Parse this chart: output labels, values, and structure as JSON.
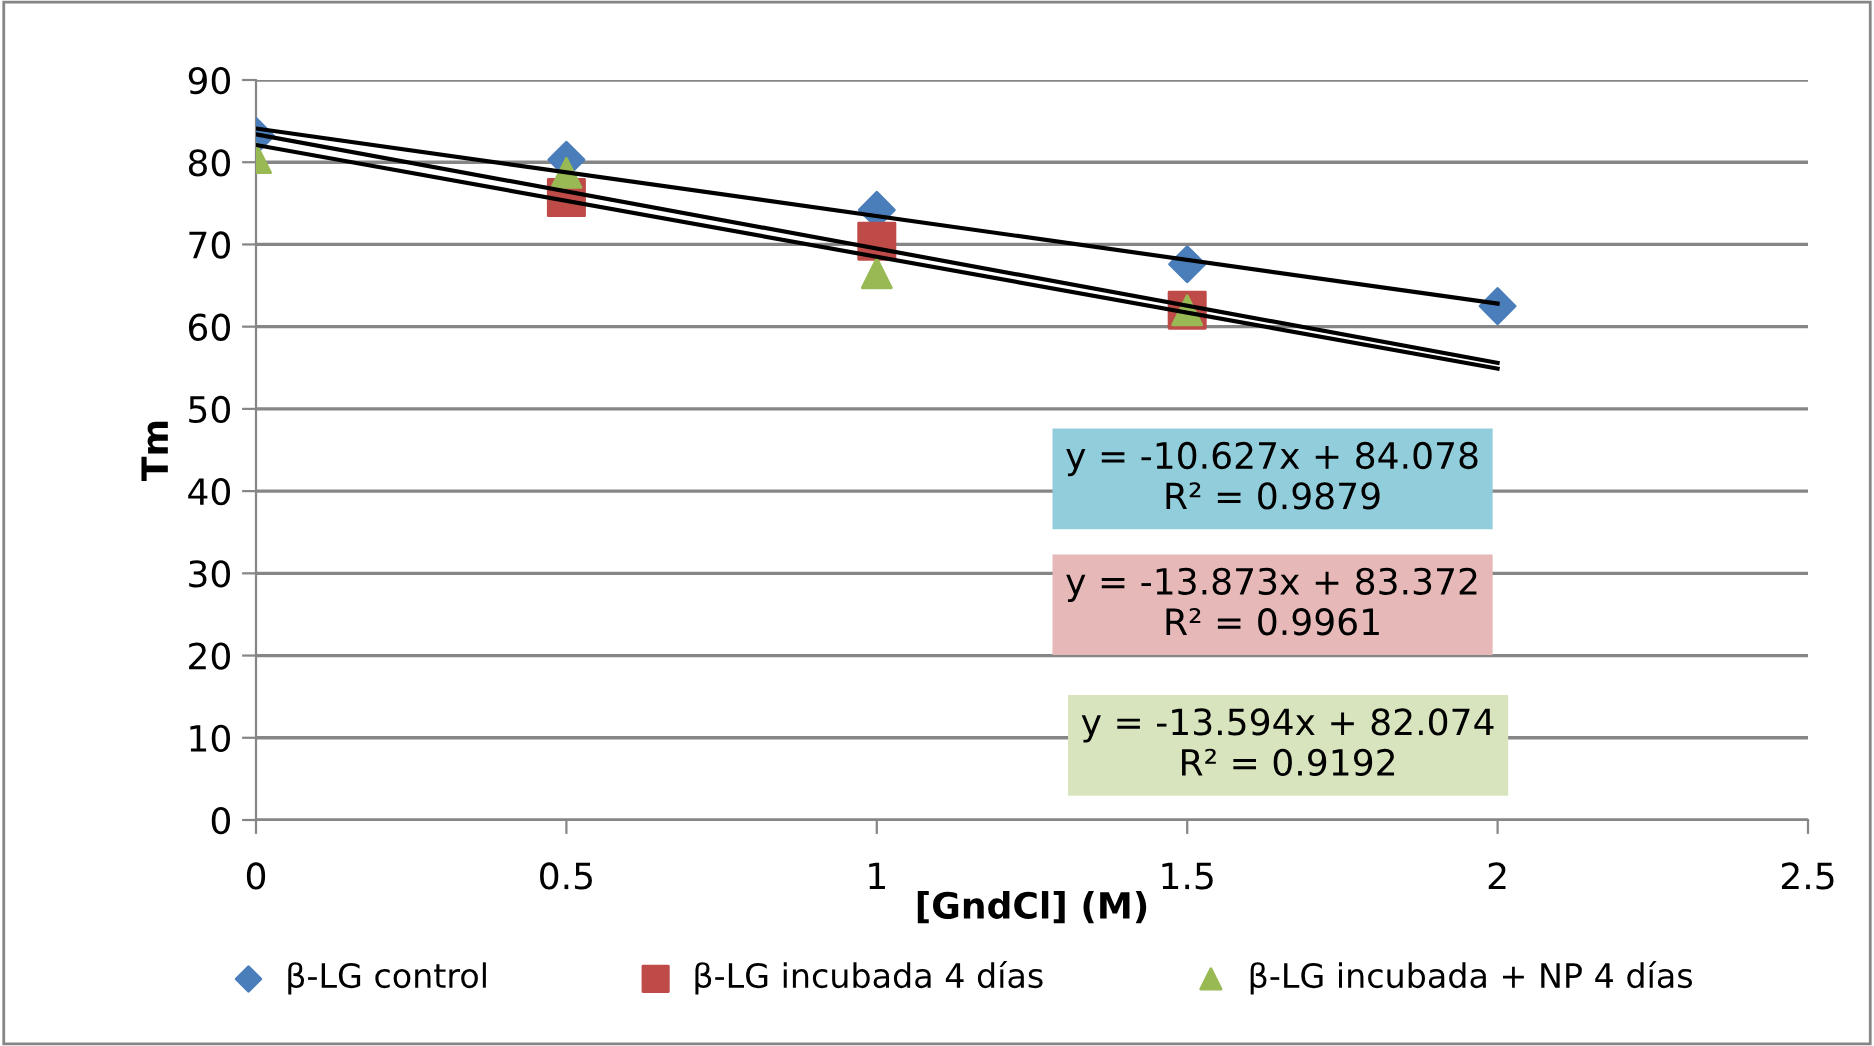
{
  "chart_data": {
    "type": "scatter",
    "xlabel": "[GndCl] (M)",
    "ylabel": "Tm",
    "xlim": [
      0,
      2.5
    ],
    "xticks": [
      0,
      0.5,
      1,
      1.5,
      2,
      2.5
    ],
    "ylim": [
      0,
      90
    ],
    "yticks": [
      0,
      10,
      20,
      30,
      40,
      50,
      60,
      70,
      80,
      90
    ],
    "grid": "y",
    "legend": "bottom",
    "series": [
      {
        "name": "β-LG control",
        "color": "#4a7ebb",
        "marker": "diamond",
        "x": [
          0,
          0.5,
          1,
          1.5,
          2
        ],
        "values": [
          83.2,
          80.3,
          74.2,
          67.6,
          62.5
        ]
      },
      {
        "name": "β-LG incubada 4 días",
        "color": "#be4b48",
        "marker": "square",
        "x": [
          0.5,
          1,
          1.5
        ],
        "values": [
          75.7,
          70.4,
          62
        ]
      },
      {
        "name": "β-LG incubada + NP 4 días",
        "color": "#98b954",
        "marker": "triangle",
        "x": [
          0,
          0.5,
          1,
          1.5
        ],
        "values": [
          80.5,
          78.7,
          66.5,
          62
        ]
      },
      {
        "type": "line",
        "color": "#000000",
        "x": [
          0,
          2
        ],
        "values": [
          84.1,
          62.8
        ]
      },
      {
        "type": "line",
        "color": "#000000",
        "x": [
          0,
          2
        ],
        "values": [
          83.4,
          55.6
        ]
      },
      {
        "type": "line",
        "color": "#000000",
        "x": [
          0,
          2
        ],
        "values": [
          82.1,
          54.9
        ]
      }
    ],
    "annotations": [
      "y = -10.627x + 84.078\nR² = 0.9879",
      "y = -13.873x + 83.372\nR² = 0.9961",
      "y = -13.594x + 82.074\nR² = 0.9192"
    ]
  }
}
